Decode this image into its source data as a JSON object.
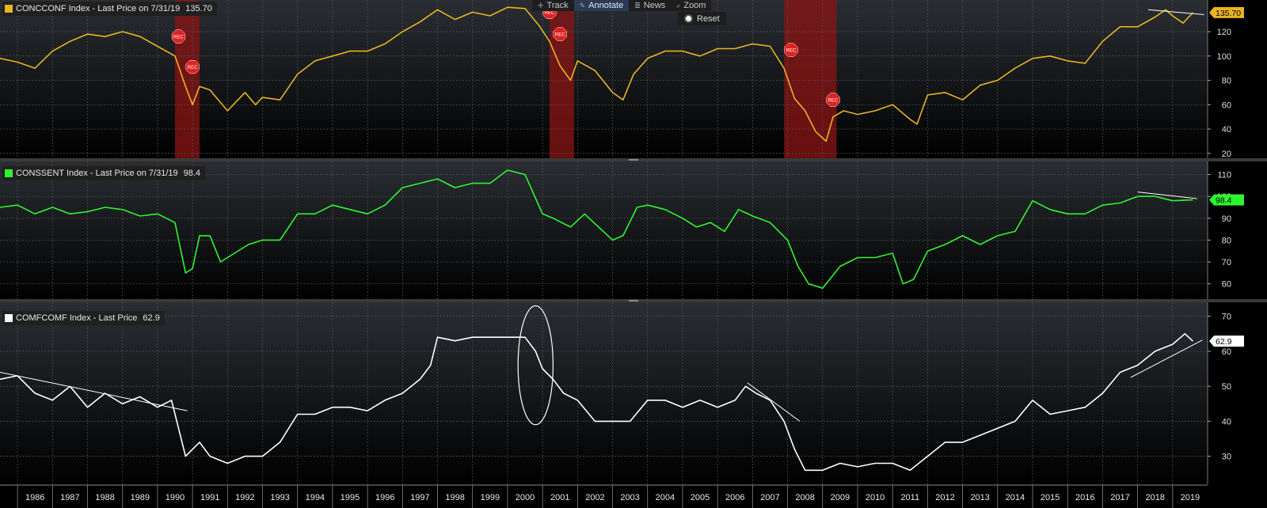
{
  "toolbar": {
    "track": "Track",
    "annotate": "Annotate",
    "news": "News",
    "zoom": "Zoom",
    "reset": "Reset"
  },
  "colors": {
    "background": "#000000",
    "concconf": "#e8b422",
    "conssent": "#2ff52f",
    "comfconf": "#ffffff",
    "recession": "#8b1414",
    "grid": "#555555"
  },
  "recession_marker": "REC",
  "legends": [
    {
      "swatch": "#e8b422",
      "label": "CONCCONF Index - Last Price on 7/31/19",
      "price": "135.70"
    },
    {
      "swatch": "#2ff52f",
      "label": "CONSSENT Index - Last Price on 7/31/19",
      "price": "98.4"
    },
    {
      "swatch": "#ffffff",
      "label": "COMFCOMF Index - Last Price",
      "price": "62.9"
    }
  ],
  "chart_data": [
    {
      "type": "line",
      "name": "CONCCONF Index",
      "y_ticks": [
        20,
        40,
        60,
        80,
        100,
        120
      ],
      "ylim": [
        16,
        146
      ],
      "last_value": "135.70",
      "recessions": [
        [
          1990.5,
          1991.2
        ],
        [
          2001.2,
          2001.9
        ],
        [
          2007.9,
          2009.4
        ]
      ],
      "rec_markers": [
        {
          "x": 1990.6,
          "y": 116
        },
        {
          "x": 1991.0,
          "y": 91
        },
        {
          "x": 2001.2,
          "y": 136
        },
        {
          "x": 2001.5,
          "y": 118
        },
        {
          "x": 2008.1,
          "y": 105
        },
        {
          "x": 2009.3,
          "y": 64
        }
      ],
      "trendlines": [
        {
          "x1": 2018.3,
          "y1": 138,
          "x2": 2019.9,
          "y2": 134
        }
      ],
      "x": [
        1985.5,
        1986.0,
        1986.5,
        1987.0,
        1987.5,
        1988.0,
        1988.5,
        1989.0,
        1989.5,
        1990.0,
        1990.5,
        1990.8,
        1991.0,
        1991.2,
        1991.5,
        1992.0,
        1992.5,
        1992.8,
        1993.0,
        1993.5,
        1994.0,
        1994.5,
        1995.0,
        1995.5,
        1996.0,
        1996.5,
        1997.0,
        1997.5,
        1998.0,
        1998.5,
        1999.0,
        1999.5,
        2000.0,
        2000.5,
        2000.9,
        2001.2,
        2001.5,
        2001.8,
        2002.0,
        2002.5,
        2003.0,
        2003.3,
        2003.6,
        2004.0,
        2004.5,
        2005.0,
        2005.5,
        2006.0,
        2006.5,
        2007.0,
        2007.5,
        2007.9,
        2008.2,
        2008.5,
        2008.8,
        2009.1,
        2009.3,
        2009.6,
        2010.0,
        2010.5,
        2011.0,
        2011.5,
        2011.7,
        2012.0,
        2012.5,
        2013.0,
        2013.5,
        2014.0,
        2014.5,
        2015.0,
        2015.5,
        2016.0,
        2016.5,
        2017.0,
        2017.5,
        2018.0,
        2018.5,
        2018.8,
        2019.0,
        2019.3,
        2019.58
      ],
      "y": [
        98,
        95,
        90,
        104,
        112,
        118,
        116,
        120,
        116,
        108,
        100,
        75,
        60,
        75,
        72,
        55,
        70,
        60,
        66,
        64,
        85,
        96,
        100,
        104,
        104,
        110,
        120,
        128,
        138,
        130,
        136,
        133,
        140,
        139,
        125,
        112,
        92,
        80,
        96,
        88,
        70,
        64,
        85,
        98,
        104,
        104,
        100,
        106,
        106,
        110,
        108,
        90,
        65,
        55,
        38,
        30,
        50,
        55,
        52,
        55,
        60,
        48,
        44,
        68,
        70,
        64,
        76,
        80,
        90,
        98,
        100,
        96,
        94,
        112,
        124,
        124,
        132,
        138,
        133,
        127,
        135.7
      ]
    },
    {
      "type": "line",
      "name": "CONSSENT Index",
      "y_ticks": [
        60,
        70,
        80,
        90,
        100,
        110
      ],
      "ylim": [
        53,
        116
      ],
      "last_value": "98.4",
      "trendlines": [
        {
          "x1": 2018.0,
          "y1": 102,
          "x2": 2019.7,
          "y2": 99
        }
      ],
      "x": [
        1985.5,
        1986.0,
        1986.5,
        1987.0,
        1987.5,
        1988.0,
        1988.5,
        1989.0,
        1989.5,
        1990.0,
        1990.5,
        1990.8,
        1991.0,
        1991.2,
        1991.5,
        1991.8,
        1992.2,
        1992.6,
        1993.0,
        1993.5,
        1994.0,
        1994.5,
        1995.0,
        1995.5,
        1996.0,
        1996.5,
        1997.0,
        1997.5,
        1998.0,
        1998.5,
        1999.0,
        1999.5,
        2000.0,
        2000.5,
        2001.0,
        2001.3,
        2001.8,
        2002.2,
        2002.6,
        2003.0,
        2003.3,
        2003.7,
        2004.0,
        2004.5,
        2005.0,
        2005.4,
        2005.8,
        2006.2,
        2006.6,
        2007.0,
        2007.5,
        2008.0,
        2008.3,
        2008.6,
        2009.0,
        2009.5,
        2010.0,
        2010.5,
        2011.0,
        2011.3,
        2011.6,
        2012.0,
        2012.5,
        2013.0,
        2013.5,
        2014.0,
        2014.5,
        2015.0,
        2015.5,
        2016.0,
        2016.5,
        2017.0,
        2017.5,
        2018.0,
        2018.5,
        2019.0,
        2019.58
      ],
      "y": [
        95,
        96,
        92,
        95,
        92,
        93,
        95,
        94,
        91,
        92,
        88,
        65,
        67,
        82,
        82,
        70,
        74,
        78,
        80,
        80,
        92,
        92,
        96,
        94,
        92,
        96,
        104,
        106,
        108,
        104,
        106,
        106,
        112,
        110,
        92,
        90,
        86,
        92,
        86,
        80,
        82,
        95,
        96,
        94,
        90,
        86,
        88,
        84,
        94,
        91,
        88,
        80,
        68,
        60,
        58,
        68,
        72,
        72,
        74,
        60,
        62,
        75,
        78,
        82,
        78,
        82,
        84,
        98,
        94,
        92,
        92,
        96,
        97,
        100,
        100,
        98,
        98.4
      ]
    },
    {
      "type": "line",
      "name": "COMFCOMF Index",
      "y_ticks": [
        30,
        40,
        50,
        60,
        70
      ],
      "ylim": [
        22,
        74
      ],
      "last_value": "62.9",
      "annotations": [
        {
          "kind": "ellipse",
          "cx": 2000.8,
          "cy": 56,
          "rx": 0.5,
          "ry": 17
        }
      ],
      "trendlines": [
        {
          "x1": 1985.5,
          "y1": 54,
          "x2": 1990.85,
          "y2": 43
        },
        {
          "x1": 2006.85,
          "y1": 51,
          "x2": 2008.35,
          "y2": 40
        },
        {
          "x1": 2017.8,
          "y1": 52.5,
          "x2": 2019.85,
          "y2": 63.2
        }
      ],
      "x": [
        1985.5,
        1986.0,
        1986.5,
        1987.0,
        1987.5,
        1988.0,
        1988.5,
        1989.0,
        1989.5,
        1990.0,
        1990.4,
        1990.8,
        1991.2,
        1991.5,
        1992.0,
        1992.5,
        1993.0,
        1993.5,
        1994.0,
        1994.5,
        1995.0,
        1995.5,
        1996.0,
        1996.5,
        1997.0,
        1997.5,
        1997.8,
        1998.0,
        1998.5,
        1999.0,
        1999.5,
        2000.0,
        2000.5,
        2000.8,
        2001.0,
        2001.3,
        2001.6,
        2002.0,
        2002.5,
        2003.0,
        2003.5,
        2004.0,
        2004.5,
        2005.0,
        2005.5,
        2006.0,
        2006.5,
        2006.8,
        2007.1,
        2007.5,
        2007.9,
        2008.2,
        2008.5,
        2009.0,
        2009.5,
        2010.0,
        2010.5,
        2011.0,
        2011.5,
        2012.0,
        2012.5,
        2013.0,
        2013.5,
        2014.0,
        2014.5,
        2015.0,
        2015.5,
        2016.0,
        2016.5,
        2017.0,
        2017.5,
        2018.0,
        2018.5,
        2019.0,
        2019.35,
        2019.58
      ],
      "y": [
        52,
        53,
        48,
        46,
        50,
        44,
        48,
        45,
        47,
        44,
        46,
        30,
        34,
        30,
        28,
        30,
        30,
        34,
        42,
        42,
        44,
        44,
        43,
        46,
        48,
        52,
        56,
        64,
        63,
        64,
        64,
        64,
        64,
        60,
        55,
        52,
        48,
        46,
        40,
        40,
        40,
        46,
        46,
        44,
        46,
        44,
        46,
        50,
        48,
        46,
        40,
        32,
        26,
        26,
        28,
        27,
        28,
        28,
        26,
        30,
        34,
        34,
        36,
        38,
        40,
        46,
        42,
        43,
        44,
        48,
        54,
        56,
        60,
        62,
        65,
        62.9
      ]
    }
  ],
  "x_axis": {
    "labels": [
      "1986",
      "1987",
      "1988",
      "1989",
      "1990",
      "1991",
      "1992",
      "1993",
      "1994",
      "1995",
      "1996",
      "1997",
      "1998",
      "1999",
      "2000",
      "2001",
      "2002",
      "2003",
      "2004",
      "2005",
      "2006",
      "2007",
      "2008",
      "2009",
      "2010",
      "2011",
      "2012",
      "2013",
      "2014",
      "2015",
      "2016",
      "2017",
      "2018",
      "2019"
    ],
    "xlim": [
      1985.5,
      2020.0
    ]
  }
}
